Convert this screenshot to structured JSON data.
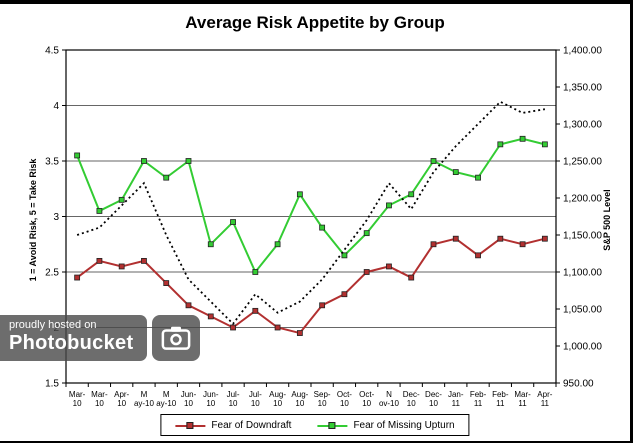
{
  "chart_data": {
    "type": "line",
    "title": "Average Risk Appetite by Group",
    "categories": [
      "Mar-10",
      "Mar-10",
      "Apr-10",
      "May-10",
      "May-10",
      "Jun-10",
      "Jun-10",
      "Jul-10",
      "Jul-10",
      "Aug-10",
      "Aug-10",
      "Sep-10",
      "Oct-10",
      "Oct-10",
      "Nov-10",
      "Dec-10",
      "Dec-10",
      "Jan-11",
      "Feb-11",
      "Feb-11",
      "Mar-11",
      "Apr-11"
    ],
    "x_tick_lines": [
      [
        "Mar-",
        "10"
      ],
      [
        "Mar-",
        "10"
      ],
      [
        "Apr-",
        "10"
      ],
      [
        "M",
        "ay-10"
      ],
      [
        "M",
        "ay-10"
      ],
      [
        "Jun-",
        "10"
      ],
      [
        "Jun-",
        "10"
      ],
      [
        "Jul-",
        "10"
      ],
      [
        "Jul-",
        "10"
      ],
      [
        "Aug-",
        "10"
      ],
      [
        "Aug-",
        "10"
      ],
      [
        "Sep-",
        "10"
      ],
      [
        "Oct-",
        "10"
      ],
      [
        "Oct-",
        "10"
      ],
      [
        "N",
        "ov-10"
      ],
      [
        "Dec-",
        "10"
      ],
      [
        "Dec-",
        "10"
      ],
      [
        "Jan-",
        "11"
      ],
      [
        "Feb-",
        "11"
      ],
      [
        "Feb-",
        "11"
      ],
      [
        "Mar-",
        "11"
      ],
      [
        "Apr-",
        "11"
      ]
    ],
    "series": [
      {
        "name": "Fear of Downdraft",
        "axis": "left",
        "color": "#b23030",
        "marker": "square",
        "style": "solid",
        "values": [
          2.45,
          2.6,
          2.55,
          2.6,
          2.4,
          2.2,
          2.1,
          2.0,
          2.15,
          2.0,
          1.95,
          2.2,
          2.3,
          2.5,
          2.55,
          2.45,
          2.75,
          2.8,
          2.65,
          2.8,
          2.75,
          2.8
        ]
      },
      {
        "name": "Fear of Missing Upturn",
        "axis": "left",
        "color": "#33cc33",
        "marker": "square",
        "style": "solid",
        "values": [
          3.55,
          3.05,
          3.15,
          3.5,
          3.35,
          3.5,
          2.75,
          2.95,
          2.5,
          2.75,
          3.2,
          2.9,
          2.65,
          2.85,
          3.1,
          3.2,
          3.5,
          3.4,
          3.35,
          3.65,
          3.7,
          3.65
        ]
      },
      {
        "name": "S&P 500 Level",
        "axis": "right",
        "color": "#000000",
        "marker": "none",
        "style": "dotted",
        "values": [
          1150,
          1160,
          1190,
          1220,
          1150,
          1090,
          1060,
          1030,
          1070,
          1045,
          1060,
          1090,
          1130,
          1170,
          1220,
          1185,
          1235,
          1270,
          1300,
          1330,
          1315,
          1320
        ]
      }
    ],
    "left_axis": {
      "title": "1 = Avoid Risk, 5 = Take Risk",
      "min": 1.5,
      "max": 4.5,
      "ticks": [
        "4.5",
        "4",
        "3.5",
        "3",
        "2.5",
        "2",
        "1.5"
      ]
    },
    "right_axis": {
      "title": "S&P 500 Level",
      "min": 950,
      "max": 1400,
      "ticks": [
        "1,400.00",
        "1,350.00",
        "1,300.00",
        "1,250.00",
        "1,200.00",
        "1,150.00",
        "1,100.00",
        "1,050.00",
        "1,000.00",
        "950.00"
      ]
    },
    "grid": true,
    "legend_position": "bottom",
    "legend": [
      "Fear of Downdraft",
      "Fear of Missing Upturn"
    ]
  },
  "watermark": {
    "line1": "proudly hosted on",
    "line2": "Photobucket",
    "icon": "camera-icon"
  }
}
